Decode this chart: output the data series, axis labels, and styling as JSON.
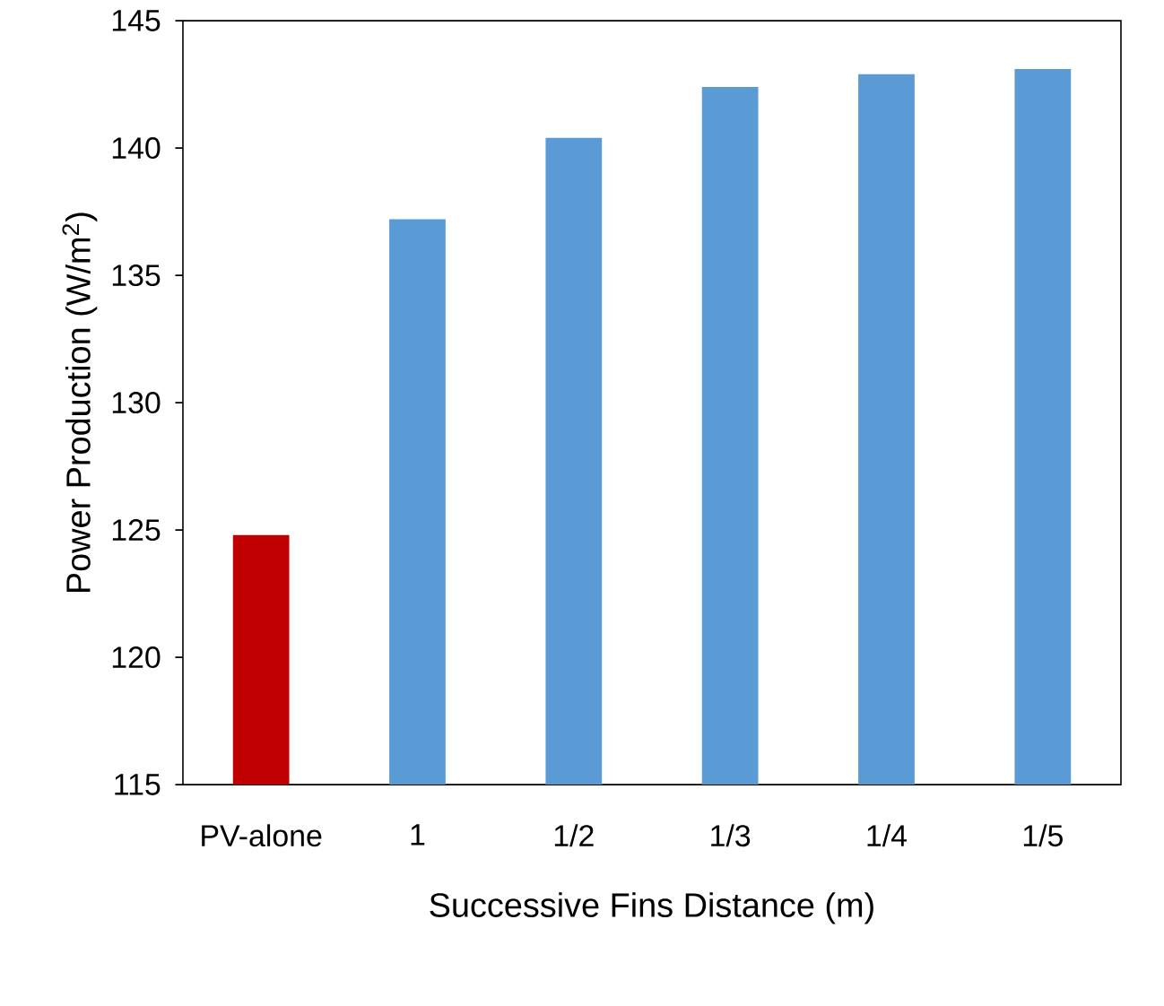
{
  "chart_data": {
    "type": "bar",
    "xlabel": "Successive Fins Distance (m)",
    "ylabel": "Power Production (W/m$^{2}$)",
    "categories": [
      "PV-alone",
      "1",
      "1/2",
      "1/3",
      "1/4",
      "1/5"
    ],
    "values": [
      124.8,
      137.2,
      140.4,
      142.4,
      142.9,
      143.1
    ],
    "colors": [
      "#c00000",
      "#5b9bd5",
      "#5b9bd5",
      "#5b9bd5",
      "#5b9bd5",
      "#5b9bd5"
    ],
    "ylim": [
      115,
      145
    ],
    "yticks": [
      115,
      120,
      125,
      130,
      135,
      140,
      145
    ]
  }
}
